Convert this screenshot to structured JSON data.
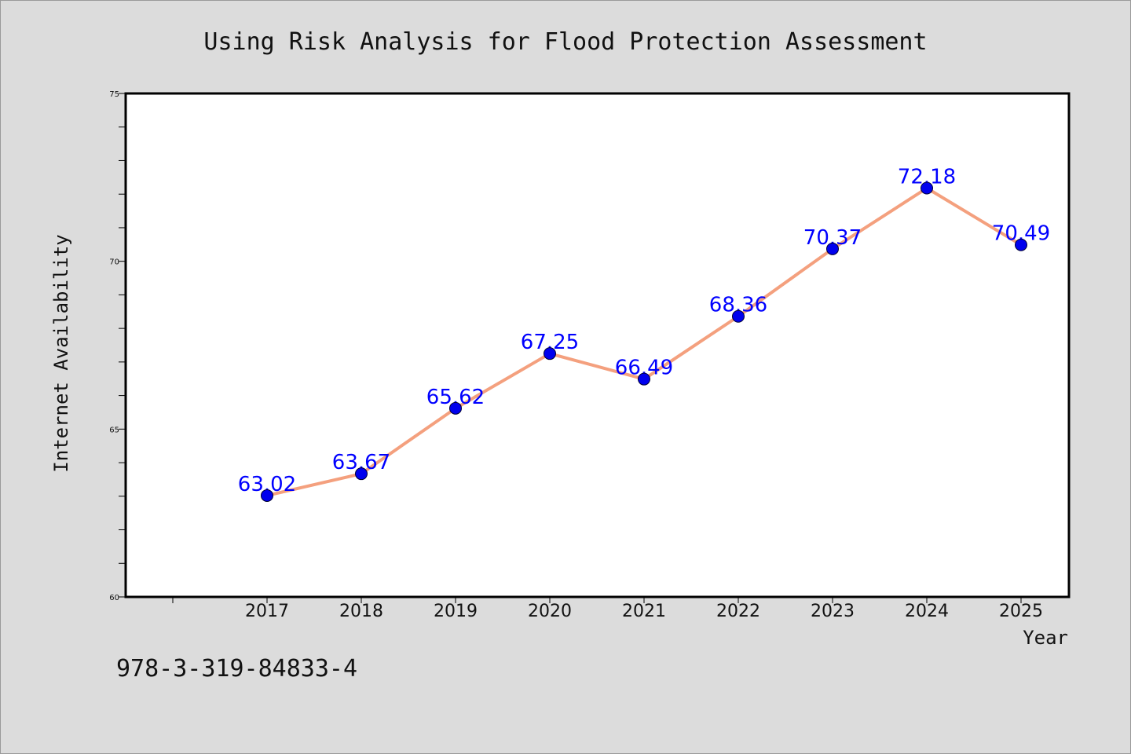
{
  "chart_data": {
    "type": "line",
    "title": "Using Risk Analysis for Flood Protection Assessment",
    "xlabel": "Year",
    "ylabel": "Internet Availability",
    "categories": [
      "2017",
      "2018",
      "2019",
      "2020",
      "2021",
      "2022",
      "2023",
      "2024",
      "2025"
    ],
    "series": [
      {
        "values": [
          63.02,
          63.67,
          65.62,
          67.25,
          66.49,
          68.36,
          70.37,
          72.18,
          70.49
        ],
        "data_labels": [
          "63.02",
          "63.67",
          "65.62",
          "67.25",
          "66.49",
          "68.36",
          "70.37",
          "72.18",
          "70.49"
        ],
        "line_color": "#f4a07e",
        "marker_color": "#0000ee"
      }
    ],
    "ylim": [
      60,
      75
    ],
    "yticks": [
      "60",
      "65",
      "70",
      "75"
    ],
    "grid": false,
    "legend": "none",
    "plot_background": "#ffffff",
    "label_color": "#0000ff"
  },
  "footer": {
    "isbn": "978-3-319-84833-4"
  }
}
